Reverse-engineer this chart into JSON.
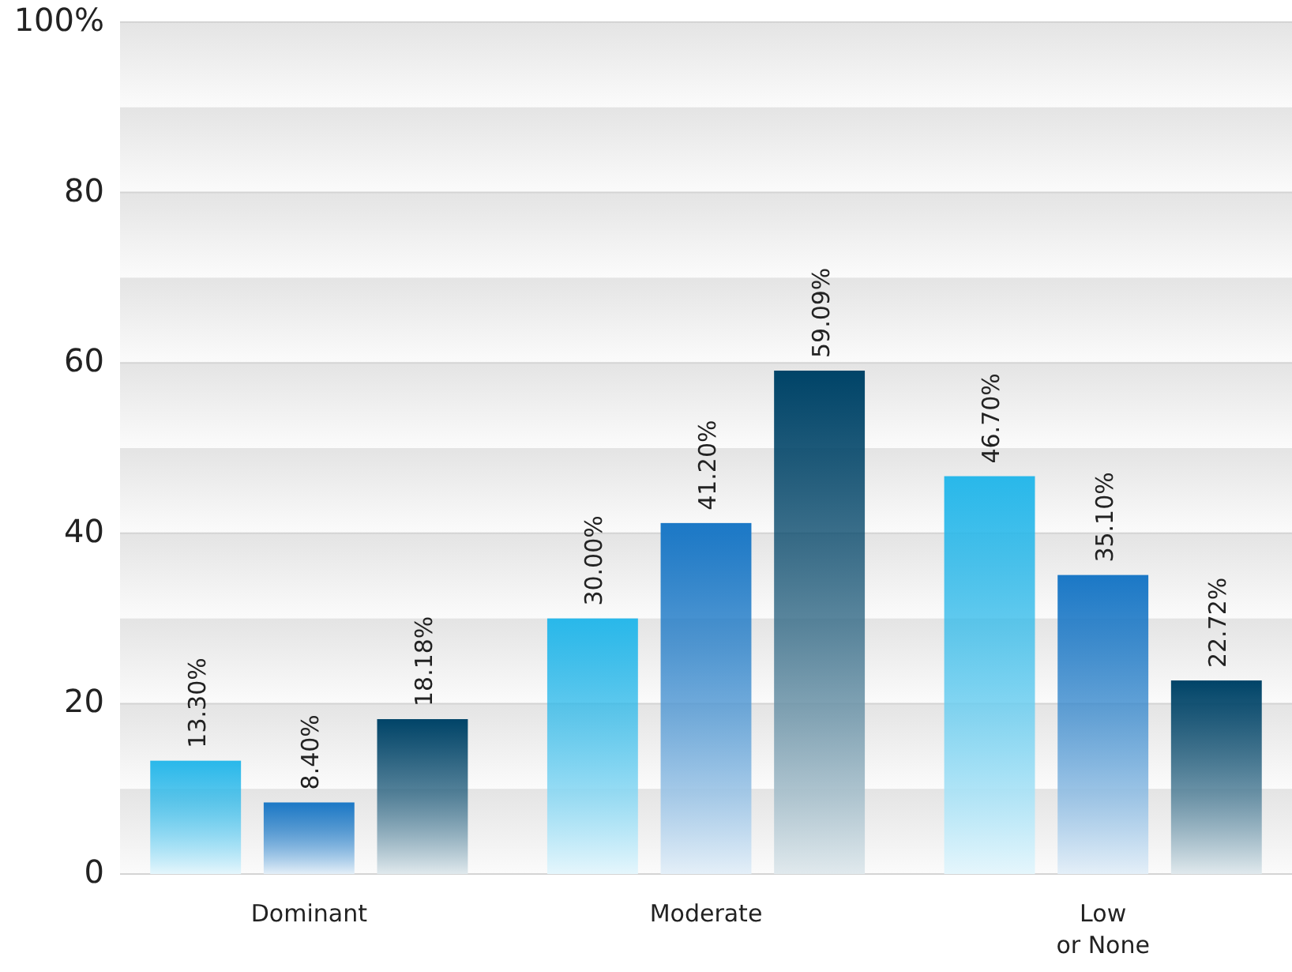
{
  "chart_data": {
    "type": "bar",
    "categories": [
      "Dominant",
      "Moderate",
      "Low\nor None"
    ],
    "series": [
      {
        "color": "#29b8ea",
        "values": [
          13.3,
          30.0,
          46.7
        ],
        "value_labels": [
          "13.30%",
          "30.00%",
          "46.70%"
        ]
      },
      {
        "color": "#1b78c6",
        "values": [
          8.4,
          41.2,
          35.1
        ],
        "value_labels": [
          "8.40%",
          "41.20%",
          "35.10%"
        ]
      },
      {
        "color": "#004468",
        "values": [
          18.18,
          59.09,
          22.72
        ],
        "value_labels": [
          "18.18%",
          "59.09%",
          "22.72%"
        ]
      }
    ],
    "ylim": [
      0,
      100
    ],
    "yticks": [
      0,
      20,
      40,
      60,
      80,
      {
        "value": 100,
        "label": "100%"
      }
    ],
    "grid": true
  }
}
